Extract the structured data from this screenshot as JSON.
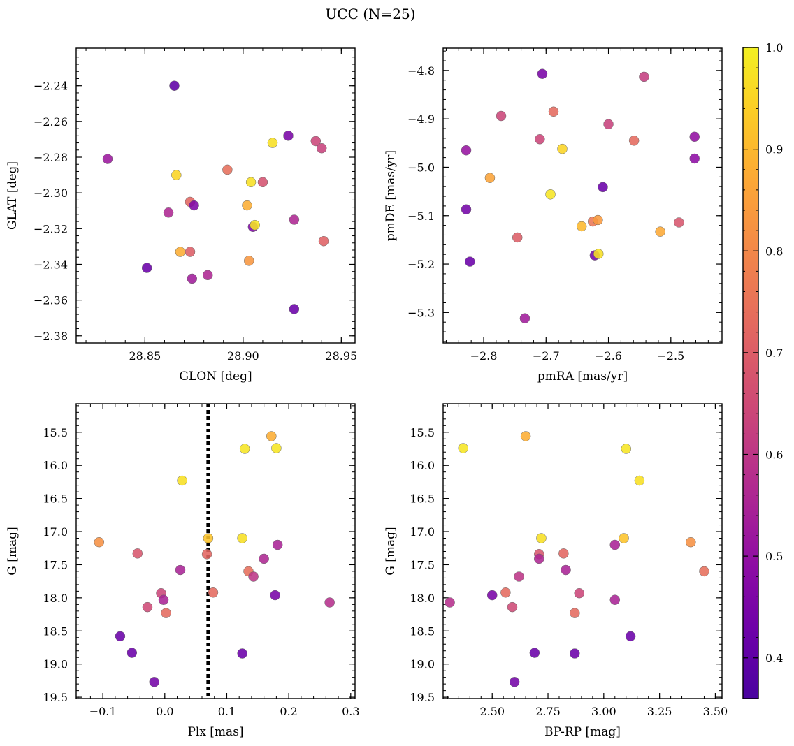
{
  "figure": {
    "title": "UCC (N=25)"
  },
  "colorbar": {
    "colormap": "plasma",
    "range": [
      0.36,
      1.0
    ],
    "ticks": [
      0.4,
      0.5,
      0.6,
      0.7,
      0.8,
      0.9,
      1.0
    ],
    "tick_labels": [
      "0.4",
      "0.5",
      "0.6",
      "0.7",
      "0.8",
      "0.9",
      "1.0"
    ]
  },
  "chart_data": [
    {
      "type": "scatter",
      "panel": "top-left",
      "xlabel": "GLON [deg]",
      "ylabel": "GLAT [deg]",
      "xlim": [
        28.815,
        28.957
      ],
      "ylim": [
        -2.384,
        -2.219
      ],
      "xticks": [
        28.85,
        28.9,
        28.95
      ],
      "xtick_labels": [
        "28.85",
        "28.90",
        "28.95"
      ],
      "yticks": [
        -2.24,
        -2.26,
        -2.28,
        -2.3,
        -2.32,
        -2.34,
        -2.36,
        -2.38
      ],
      "ytick_labels": [
        "−2.24",
        "−2.26",
        "−2.28",
        "−2.30",
        "−2.32",
        "−2.34",
        "−2.36",
        "−2.38"
      ],
      "points": [
        {
          "x": 28.865,
          "y": -2.24,
          "c": 0.4
        },
        {
          "x": 28.831,
          "y": -2.281,
          "c": 0.52
        },
        {
          "x": 28.866,
          "y": -2.29,
          "c": 0.95
        },
        {
          "x": 28.923,
          "y": -2.268,
          "c": 0.45
        },
        {
          "x": 28.915,
          "y": -2.272,
          "c": 0.97
        },
        {
          "x": 28.937,
          "y": -2.271,
          "c": 0.64
        },
        {
          "x": 28.94,
          "y": -2.275,
          "c": 0.63
        },
        {
          "x": 28.892,
          "y": -2.287,
          "c": 0.74
        },
        {
          "x": 28.904,
          "y": -2.294,
          "c": 0.97
        },
        {
          "x": 28.91,
          "y": -2.294,
          "c": 0.67
        },
        {
          "x": 28.902,
          "y": -2.307,
          "c": 0.88
        },
        {
          "x": 28.873,
          "y": -2.305,
          "c": 0.72
        },
        {
          "x": 28.875,
          "y": -2.307,
          "c": 0.46
        },
        {
          "x": 28.862,
          "y": -2.311,
          "c": 0.56
        },
        {
          "x": 28.905,
          "y": -2.319,
          "c": 0.46
        },
        {
          "x": 28.906,
          "y": -2.318,
          "c": 0.98
        },
        {
          "x": 28.926,
          "y": -2.315,
          "c": 0.56
        },
        {
          "x": 28.941,
          "y": -2.327,
          "c": 0.71
        },
        {
          "x": 28.868,
          "y": -2.333,
          "c": 0.88
        },
        {
          "x": 28.873,
          "y": -2.333,
          "c": 0.7
        },
        {
          "x": 28.903,
          "y": -2.338,
          "c": 0.83
        },
        {
          "x": 28.851,
          "y": -2.342,
          "c": 0.42
        },
        {
          "x": 28.874,
          "y": -2.348,
          "c": 0.53
        },
        {
          "x": 28.882,
          "y": -2.346,
          "c": 0.56
        },
        {
          "x": 28.926,
          "y": -2.365,
          "c": 0.42
        }
      ]
    },
    {
      "type": "scatter",
      "panel": "top-right",
      "xlabel": "pmRA [mas/yr]",
      "ylabel": "pmDE [mas/yr]",
      "xlim": [
        -2.865,
        -2.418
      ],
      "ylim": [
        -5.363,
        -4.754
      ],
      "xticks": [
        -2.8,
        -2.7,
        -2.6,
        -2.5
      ],
      "xtick_labels": [
        "−2.8",
        "−2.7",
        "−2.6",
        "−2.5"
      ],
      "yticks": [
        -4.8,
        -4.9,
        -5.0,
        -5.1,
        -5.2,
        -5.3
      ],
      "ytick_labels": [
        "−4.8",
        "−4.9",
        "−5.0",
        "−5.1",
        "−5.2",
        "−5.3"
      ],
      "points": [
        {
          "x": -2.706,
          "y": -4.807,
          "c": 0.45
        },
        {
          "x": -2.543,
          "y": -4.813,
          "c": 0.62
        },
        {
          "x": -2.772,
          "y": -4.894,
          "c": 0.64
        },
        {
          "x": -2.688,
          "y": -4.885,
          "c": 0.73
        },
        {
          "x": -2.6,
          "y": -4.911,
          "c": 0.63
        },
        {
          "x": -2.71,
          "y": -4.942,
          "c": 0.64
        },
        {
          "x": -2.559,
          "y": -4.945,
          "c": 0.73
        },
        {
          "x": -2.462,
          "y": -4.937,
          "c": 0.5
        },
        {
          "x": -2.828,
          "y": -4.965,
          "c": 0.51
        },
        {
          "x": -2.674,
          "y": -4.962,
          "c": 0.95
        },
        {
          "x": -2.462,
          "y": -4.982,
          "c": 0.49
        },
        {
          "x": -2.79,
          "y": -5.022,
          "c": 0.86
        },
        {
          "x": -2.609,
          "y": -5.041,
          "c": 0.42
        },
        {
          "x": -2.693,
          "y": -5.056,
          "c": 0.98
        },
        {
          "x": -2.828,
          "y": -5.087,
          "c": 0.44
        },
        {
          "x": -2.643,
          "y": -5.122,
          "c": 0.9
        },
        {
          "x": -2.625,
          "y": -5.112,
          "c": 0.76
        },
        {
          "x": -2.617,
          "y": -5.109,
          "c": 0.84
        },
        {
          "x": -2.517,
          "y": -5.133,
          "c": 0.87
        },
        {
          "x": -2.487,
          "y": -5.114,
          "c": 0.68
        },
        {
          "x": -2.746,
          "y": -5.145,
          "c": 0.7
        },
        {
          "x": -2.622,
          "y": -5.182,
          "c": 0.44
        },
        {
          "x": -2.616,
          "y": -5.179,
          "c": 0.97
        },
        {
          "x": -2.822,
          "y": -5.195,
          "c": 0.42
        },
        {
          "x": -2.734,
          "y": -5.312,
          "c": 0.53
        }
      ]
    },
    {
      "type": "scatter",
      "panel": "bottom-left",
      "xlabel": "Plx [mas]",
      "ylabel": "G [mag]",
      "xlim": [
        -0.143,
        0.307
      ],
      "ylim": [
        19.52,
        15.07
      ],
      "xticks": [
        -0.1,
        0.0,
        0.1,
        0.2,
        0.3
      ],
      "xtick_labels": [
        "−0.1",
        "0.0",
        "0.1",
        "0.2",
        "0.3"
      ],
      "yticks": [
        15.5,
        16.0,
        16.5,
        17.0,
        17.5,
        18.0,
        18.5,
        19.0,
        19.5
      ],
      "ytick_labels": [
        "15.5",
        "16.0",
        "16.5",
        "17.0",
        "17.5",
        "18.0",
        "18.5",
        "19.0",
        "19.5"
      ],
      "vline": {
        "x": 0.07,
        "style": "dotted"
      },
      "points": [
        {
          "x": 0.172,
          "y": 15.56,
          "c": 0.88
        },
        {
          "x": 0.129,
          "y": 15.75,
          "c": 0.98
        },
        {
          "x": 0.18,
          "y": 15.74,
          "c": 0.98
        },
        {
          "x": 0.028,
          "y": 16.23,
          "c": 0.97
        },
        {
          "x": -0.106,
          "y": 17.16,
          "c": 0.82
        },
        {
          "x": 0.07,
          "y": 17.1,
          "c": 0.92
        },
        {
          "x": 0.125,
          "y": 17.1,
          "c": 0.97
        },
        {
          "x": -0.044,
          "y": 17.33,
          "c": 0.68
        },
        {
          "x": 0.068,
          "y": 17.34,
          "c": 0.72
        },
        {
          "x": 0.182,
          "y": 17.2,
          "c": 0.55
        },
        {
          "x": 0.16,
          "y": 17.41,
          "c": 0.56
        },
        {
          "x": 0.025,
          "y": 17.58,
          "c": 0.55
        },
        {
          "x": 0.135,
          "y": 17.6,
          "c": 0.74
        },
        {
          "x": 0.143,
          "y": 17.68,
          "c": 0.6
        },
        {
          "x": -0.006,
          "y": 17.93,
          "c": 0.64
        },
        {
          "x": 0.078,
          "y": 17.92,
          "c": 0.73
        },
        {
          "x": 0.178,
          "y": 17.96,
          "c": 0.45
        },
        {
          "x": -0.002,
          "y": 18.03,
          "c": 0.55
        },
        {
          "x": 0.266,
          "y": 18.07,
          "c": 0.58
        },
        {
          "x": -0.028,
          "y": 18.14,
          "c": 0.65
        },
        {
          "x": 0.002,
          "y": 18.23,
          "c": 0.73
        },
        {
          "x": -0.072,
          "y": 18.58,
          "c": 0.42
        },
        {
          "x": -0.053,
          "y": 18.83,
          "c": 0.42
        },
        {
          "x": 0.125,
          "y": 18.84,
          "c": 0.42
        },
        {
          "x": -0.017,
          "y": 19.27,
          "c": 0.44
        }
      ]
    },
    {
      "type": "scatter",
      "panel": "bottom-right",
      "xlabel": "BP-RP [mag]",
      "ylabel": "G [mag]",
      "xlim": [
        2.28,
        3.53
      ],
      "ylim": [
        19.52,
        15.07
      ],
      "xticks": [
        2.5,
        2.75,
        3.0,
        3.25,
        3.5
      ],
      "xtick_labels": [
        "2.50",
        "2.75",
        "3.00",
        "3.25",
        "3.50"
      ],
      "yticks": [
        15.5,
        16.0,
        16.5,
        17.0,
        17.5,
        18.0,
        18.5,
        19.0,
        19.5
      ],
      "ytick_labels": [
        "15.5",
        "16.0",
        "16.5",
        "17.0",
        "17.5",
        "18.0",
        "18.5",
        "19.0",
        "19.5"
      ],
      "points": [
        {
          "x": 2.37,
          "y": 15.74,
          "c": 0.98
        },
        {
          "x": 2.65,
          "y": 15.56,
          "c": 0.88
        },
        {
          "x": 3.1,
          "y": 15.75,
          "c": 0.98
        },
        {
          "x": 3.16,
          "y": 16.23,
          "c": 0.97
        },
        {
          "x": 2.72,
          "y": 17.1,
          "c": 0.97
        },
        {
          "x": 3.09,
          "y": 17.1,
          "c": 0.92
        },
        {
          "x": 3.39,
          "y": 17.16,
          "c": 0.82
        },
        {
          "x": 2.71,
          "y": 17.34,
          "c": 0.68
        },
        {
          "x": 2.71,
          "y": 17.41,
          "c": 0.56
        },
        {
          "x": 2.82,
          "y": 17.33,
          "c": 0.72
        },
        {
          "x": 3.05,
          "y": 17.2,
          "c": 0.55
        },
        {
          "x": 3.45,
          "y": 17.6,
          "c": 0.74
        },
        {
          "x": 2.62,
          "y": 17.68,
          "c": 0.6
        },
        {
          "x": 2.83,
          "y": 17.58,
          "c": 0.55
        },
        {
          "x": 2.5,
          "y": 17.96,
          "c": 0.45
        },
        {
          "x": 2.56,
          "y": 17.92,
          "c": 0.73
        },
        {
          "x": 2.89,
          "y": 17.93,
          "c": 0.64
        },
        {
          "x": 3.05,
          "y": 18.03,
          "c": 0.55
        },
        {
          "x": 2.31,
          "y": 18.07,
          "c": 0.58
        },
        {
          "x": 2.59,
          "y": 18.14,
          "c": 0.65
        },
        {
          "x": 2.87,
          "y": 18.23,
          "c": 0.73
        },
        {
          "x": 3.12,
          "y": 18.58,
          "c": 0.42
        },
        {
          "x": 2.69,
          "y": 18.83,
          "c": 0.42
        },
        {
          "x": 2.87,
          "y": 18.84,
          "c": 0.42
        },
        {
          "x": 2.6,
          "y": 19.27,
          "c": 0.44
        }
      ]
    }
  ]
}
